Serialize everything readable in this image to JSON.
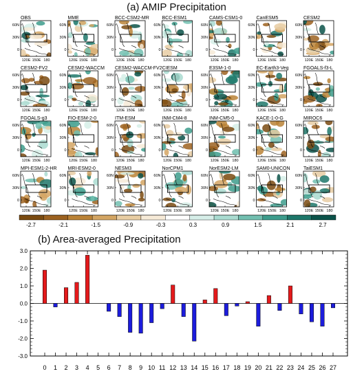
{
  "figure_title_a": "(a) AMIP Precipitation",
  "figure_title_b": "(b) Area-averaged Precipitation",
  "panels": [
    "OBS",
    "MME",
    "BCC-CSM2-MR",
    "BCC-ESM1",
    "CAMS-CSM1-0",
    "CanESM5",
    "CESM2",
    "CESM2-FV2",
    "CESM2-WACCM",
    "CESM2-WACCM-FV2",
    "CIESM",
    "E3SM-1-0",
    "EC-Earth3-Veg",
    "FGOALS-f3-L",
    "FGOALS-g3",
    "FIO-ESM-2-0",
    "ITM-ESM",
    "INM-CM4-8",
    "INM-CM5-0",
    "KACE-1-0-G",
    "MIROC6",
    "MPI-ESM1-2-HR",
    "MRI-ESM2-0",
    "NESM3",
    "NorCPM1",
    "NorESM2-LM",
    "SAM0-UNICON",
    "TaiESM1"
  ],
  "map_axes": {
    "lat_ticks": [
      "60N",
      "30N",
      "0"
    ],
    "lon_ticks": [
      "120E",
      "150E",
      "180"
    ]
  },
  "colorbar": {
    "ticks": [
      "-2.7",
      "-2.1",
      "-1.5",
      "-0.9",
      "-0.3",
      "0.3",
      "0.9",
      "1.5",
      "2.1",
      "2.7"
    ],
    "colors": [
      "#7a4a10",
      "#9c6220",
      "#ba8236",
      "#d3a563",
      "#e8cda3",
      "#f6ead7",
      "#ffffff",
      "#d6eee8",
      "#a9dbd0",
      "#72bfb0",
      "#3d9c8c",
      "#1d776a",
      "#0b5249"
    ]
  },
  "chart_data": {
    "type": "bar",
    "title": "(b) Area-averaged Precipitation",
    "categories": [
      "0",
      "1",
      "2",
      "3",
      "4",
      "5",
      "6",
      "7",
      "8",
      "9",
      "10",
      "11",
      "12",
      "13",
      "14",
      "15",
      "16",
      "17",
      "18",
      "19",
      "20",
      "21",
      "22",
      "23",
      "24",
      "25",
      "26",
      "27"
    ],
    "values": [
      1.9,
      -0.2,
      0.9,
      1.2,
      2.75,
      0.0,
      -0.45,
      -0.75,
      -1.65,
      -1.7,
      -1.1,
      -0.3,
      1.05,
      -0.75,
      -2.15,
      0.2,
      0.85,
      -0.7,
      -0.15,
      0.1,
      -1.3,
      0.45,
      -0.4,
      1.0,
      -0.6,
      -1.05,
      -1.3,
      -0.25
    ],
    "yticks": [
      "-3.0",
      "-2.0",
      "-1.0",
      "0.0",
      "1.0",
      "2.0",
      "3.0"
    ],
    "ylim": [
      -3.0,
      3.0
    ],
    "positive_color": "#e41a1c",
    "negative_color": "#1c1cdc",
    "xlabel": "",
    "ylabel": ""
  }
}
